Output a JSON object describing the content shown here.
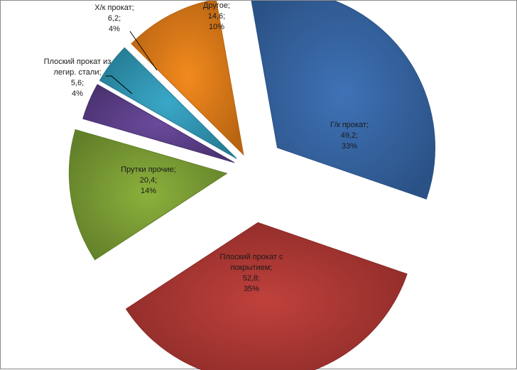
{
  "chart_data": {
    "type": "pie",
    "exploded": true,
    "legend": "none",
    "slices": [
      {
        "name": "Г/к прокат",
        "value_text": "49,2",
        "value": 49.2,
        "percent_text": "33%",
        "percent": 33,
        "color": "#3f72b6",
        "edge": "#2b5286"
      },
      {
        "name": "Плоский прокат с покрытием",
        "value_text": "52,8",
        "value": 52.8,
        "percent_text": "35%",
        "percent": 35,
        "color": "#c0413c",
        "edge": "#8c2b28"
      },
      {
        "name": "Прутки прочие",
        "value_text": "20,4",
        "value": 20.4,
        "percent_text": "14%",
        "percent": 14,
        "color": "#8cb03c",
        "edge": "#62802a"
      },
      {
        "name": "Плоский прокат из легир. стали",
        "value_text": "5,6",
        "value": 5.6,
        "percent_text": "4%",
        "percent": 4,
        "color": "#6a4a9c",
        "edge": "#4a3270"
      },
      {
        "name": "Х/к прокат",
        "value_text": "6,2",
        "value": 6.2,
        "percent_text": "4%",
        "percent": 4,
        "color": "#3aa8c8",
        "edge": "#267c94"
      },
      {
        "name": "Другое",
        "value_text": "14,6",
        "value": 14.6,
        "percent_text": "10%",
        "percent": 10,
        "color": "#f28a1e",
        "edge": "#b86412"
      }
    ],
    "labels": [
      {
        "lines": [
          "Г/к прокат;",
          "49,2;",
          "33%"
        ]
      },
      {
        "lines": [
          "Плоский прокат с",
          "покрытием;",
          "52,8;",
          "35%"
        ]
      },
      {
        "lines": [
          "Прутки прочие;",
          "20,4;",
          "14%"
        ]
      },
      {
        "lines": [
          "Плоский прокат из",
          "легир. стали;",
          "5,6;",
          "4%"
        ]
      },
      {
        "lines": [
          "Х/к прокат;",
          "6,2;",
          "4%"
        ]
      },
      {
        "lines": [
          "Другое;",
          "14,6;",
          "10%"
        ]
      }
    ]
  }
}
